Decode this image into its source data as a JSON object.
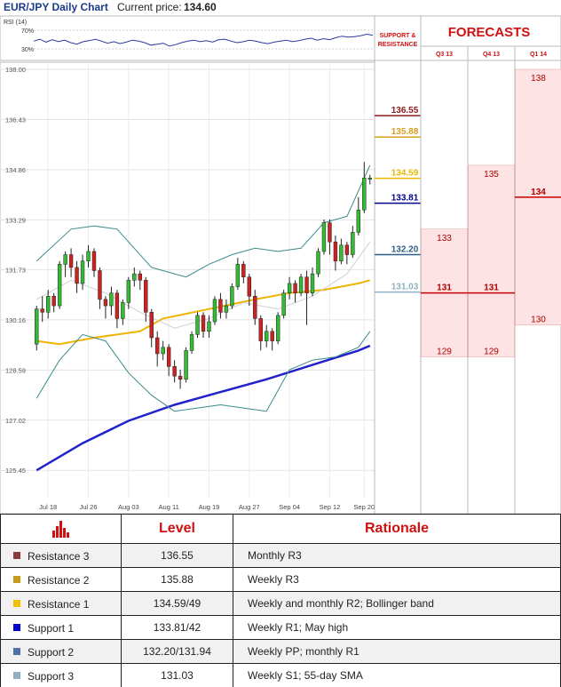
{
  "header": {
    "title": "EUR/JPY Daily Chart",
    "price_label": "Current price:",
    "price_value": "134.60"
  },
  "rsi": {
    "label": "RSI (14)",
    "ticks": [
      "70%",
      "30%"
    ]
  },
  "sr_panel": {
    "heading_line1": "SUPPORT &",
    "heading_line2": "RESISTANCE"
  },
  "forecasts": {
    "heading": "FORECASTS",
    "quarters": [
      {
        "label": "Q3 13",
        "high": "133",
        "mid": "131",
        "low": "129",
        "values": [
          133,
          131,
          129
        ]
      },
      {
        "label": "Q4 13",
        "high": "135",
        "mid": "131",
        "low": "129",
        "values": [
          135,
          131,
          129
        ]
      },
      {
        "label": "Q1 14",
        "high": "138",
        "mid": "134",
        "low": "130",
        "values": [
          138,
          134,
          130
        ]
      }
    ]
  },
  "chart_data": {
    "type": "candlestick",
    "title": "EUR/JPY Daily Chart",
    "ylim": [
      124.9,
      138.0
    ],
    "y_ticks": [
      "138.00",
      "136.43",
      "134.86",
      "133.29",
      "131.73",
      "130.16",
      "128.59",
      "127.02",
      "125.45"
    ],
    "x_ticks": [
      "Jul 18",
      "Jul 26",
      "Aug 03",
      "Aug 11",
      "Aug 19",
      "Aug 27",
      "Sep 04",
      "Sep 12",
      "Sep 20"
    ],
    "levels": [
      {
        "label": "136.55",
        "value": 136.55,
        "color": "#8b1a1a"
      },
      {
        "label": "135.88",
        "value": 135.88,
        "color": "#d4a020"
      },
      {
        "label": "134.59",
        "value": 134.59,
        "color": "#e8b800"
      },
      {
        "label": "133.81",
        "value": 133.81,
        "color": "#00008b"
      },
      {
        "label": "132.20",
        "value": 132.2,
        "color": "#2f5d8a"
      },
      {
        "label": "131.03",
        "value": 131.03,
        "color": "#8fb0c0"
      }
    ],
    "candles": [
      [
        129.4,
        130.5,
        129.2,
        130.6
      ],
      [
        130.5,
        130.4,
        130.1,
        130.9
      ],
      [
        130.4,
        130.9,
        130.2,
        131.1
      ],
      [
        130.9,
        130.6,
        130.4,
        131.0
      ],
      [
        130.6,
        131.9,
        130.5,
        132.0
      ],
      [
        131.9,
        132.2,
        131.5,
        132.3
      ],
      [
        132.2,
        131.8,
        131.5,
        132.4
      ],
      [
        131.8,
        131.3,
        131.0,
        132.0
      ],
      [
        131.3,
        132.0,
        131.1,
        132.2
      ],
      [
        132.0,
        132.3,
        131.8,
        132.5
      ],
      [
        132.3,
        131.7,
        131.5,
        132.4
      ],
      [
        131.7,
        130.8,
        130.5,
        131.8
      ],
      [
        130.8,
        130.6,
        130.2,
        130.9
      ],
      [
        130.6,
        131.0,
        130.3,
        131.2
      ],
      [
        131.0,
        130.2,
        129.9,
        131.1
      ],
      [
        130.2,
        130.7,
        130.0,
        130.8
      ],
      [
        130.7,
        131.4,
        130.5,
        131.5
      ],
      [
        131.4,
        131.6,
        131.2,
        131.8
      ],
      [
        131.6,
        131.4,
        131.1,
        131.7
      ],
      [
        131.4,
        130.4,
        130.1,
        131.5
      ],
      [
        130.4,
        129.6,
        129.3,
        130.5
      ],
      [
        129.6,
        129.1,
        128.7,
        129.8
      ],
      [
        129.1,
        129.3,
        128.9,
        129.5
      ],
      [
        129.3,
        128.7,
        128.4,
        129.4
      ],
      [
        128.7,
        128.4,
        128.2,
        128.9
      ],
      [
        128.4,
        128.3,
        128.0,
        128.6
      ],
      [
        128.3,
        129.2,
        128.2,
        129.3
      ],
      [
        129.2,
        129.7,
        129.1,
        129.8
      ],
      [
        129.7,
        130.3,
        129.6,
        130.4
      ],
      [
        130.3,
        129.8,
        129.6,
        130.4
      ],
      [
        129.8,
        130.1,
        129.6,
        130.3
      ],
      [
        130.1,
        130.8,
        130.0,
        130.9
      ],
      [
        130.8,
        130.4,
        130.2,
        131.0
      ],
      [
        130.4,
        130.6,
        130.2,
        130.8
      ],
      [
        130.6,
        131.2,
        130.5,
        131.3
      ],
      [
        131.2,
        131.9,
        131.1,
        132.1
      ],
      [
        131.9,
        131.5,
        131.3,
        132.0
      ],
      [
        131.5,
        130.9,
        130.6,
        131.6
      ],
      [
        130.9,
        130.2,
        130.0,
        131.1
      ],
      [
        130.2,
        129.5,
        129.2,
        130.3
      ],
      [
        129.5,
        129.8,
        129.3,
        130.0
      ],
      [
        129.8,
        129.5,
        129.2,
        129.9
      ],
      [
        129.5,
        130.3,
        129.4,
        130.4
      ],
      [
        130.3,
        131.0,
        130.2,
        131.1
      ],
      [
        131.0,
        131.3,
        130.8,
        131.5
      ],
      [
        131.3,
        131.0,
        130.7,
        131.4
      ],
      [
        131.0,
        131.5,
        130.9,
        131.6
      ],
      [
        131.5,
        131.0,
        130.0,
        131.7
      ],
      [
        131.0,
        131.6,
        130.9,
        131.8
      ],
      [
        131.6,
        132.3,
        131.5,
        132.4
      ],
      [
        132.3,
        133.2,
        132.2,
        133.3
      ],
      [
        133.2,
        132.6,
        132.2,
        133.3
      ],
      [
        132.6,
        132.0,
        131.7,
        132.8
      ],
      [
        132.0,
        132.5,
        131.9,
        132.7
      ],
      [
        132.5,
        132.2,
        131.9,
        132.6
      ],
      [
        132.2,
        132.9,
        132.1,
        133.1
      ],
      [
        132.9,
        133.6,
        132.8,
        134.0
      ],
      [
        133.6,
        134.6,
        133.5,
        135.1
      ],
      [
        134.6,
        134.6,
        134.4,
        134.7
      ]
    ],
    "series": [
      {
        "name": "",
        "color": "#2222cc",
        "values": [
          [
            0,
            125.45
          ],
          [
            8,
            126.3
          ],
          [
            16,
            127.0
          ],
          [
            24,
            127.5
          ],
          [
            32,
            127.9
          ],
          [
            40,
            128.3
          ],
          [
            48,
            128.75
          ],
          [
            56,
            129.2
          ],
          [
            58,
            129.35
          ]
        ]
      },
      {
        "name": "",
        "color": "#f0b400",
        "values": [
          [
            0,
            129.5
          ],
          [
            4,
            129.4
          ],
          [
            10,
            129.6
          ],
          [
            18,
            129.8
          ],
          [
            22,
            130.2
          ],
          [
            30,
            130.5
          ],
          [
            38,
            130.8
          ],
          [
            44,
            131.0
          ],
          [
            50,
            131.1
          ],
          [
            56,
            131.3
          ],
          [
            58,
            131.4
          ]
        ]
      },
      {
        "name": "",
        "color": "#3a8a8a",
        "values": [
          [
            0,
            132.0
          ],
          [
            6,
            133.0
          ],
          [
            10,
            133.1
          ],
          [
            14,
            133.0
          ],
          [
            20,
            131.8
          ],
          [
            26,
            131.5
          ],
          [
            30,
            131.9
          ],
          [
            34,
            132.2
          ],
          [
            38,
            132.4
          ],
          [
            42,
            132.3
          ],
          [
            46,
            132.4
          ],
          [
            50,
            133.2
          ],
          [
            54,
            133.4
          ],
          [
            58,
            135.0
          ]
        ]
      },
      {
        "name": "",
        "color": "#3a8a8a",
        "values": [
          [
            0,
            127.7
          ],
          [
            4,
            128.9
          ],
          [
            8,
            129.7
          ],
          [
            12,
            129.5
          ],
          [
            16,
            128.5
          ],
          [
            20,
            127.8
          ],
          [
            24,
            127.3
          ],
          [
            28,
            127.4
          ],
          [
            32,
            127.5
          ],
          [
            36,
            127.4
          ],
          [
            40,
            127.3
          ],
          [
            44,
            128.6
          ],
          [
            48,
            128.9
          ],
          [
            52,
            129.0
          ],
          [
            56,
            129.3
          ],
          [
            58,
            129.8
          ]
        ]
      },
      {
        "name": "",
        "color": "#d0d0d0",
        "values": [
          [
            0,
            130.8
          ],
          [
            6,
            131.4
          ],
          [
            12,
            131.0
          ],
          [
            18,
            130.4
          ],
          [
            24,
            129.9
          ],
          [
            30,
            130.2
          ],
          [
            36,
            130.7
          ],
          [
            42,
            130.5
          ],
          [
            48,
            130.9
          ],
          [
            54,
            131.6
          ],
          [
            58,
            132.6
          ]
        ]
      }
    ],
    "rsi_values": [
      58,
      62,
      56,
      61,
      57,
      60,
      55,
      52,
      57,
      59,
      62,
      58,
      54,
      57,
      53,
      56,
      60,
      58,
      55,
      50,
      52,
      54,
      48,
      51,
      55,
      58,
      60,
      57,
      59,
      56,
      61,
      62,
      58,
      55,
      57,
      60,
      58,
      55,
      53,
      56,
      58,
      60,
      57,
      59,
      62,
      64,
      60,
      63,
      61,
      65,
      68,
      66,
      67,
      69,
      72,
      70
    ],
    "gridlines": true
  },
  "table": {
    "col_level": "Level",
    "col_rationale": "Rationale",
    "rows": [
      {
        "name": "Resistance 3",
        "level": "136.55",
        "rationale": "Monthly R3",
        "color": "#8b3a3a"
      },
      {
        "name": "Resistance 2",
        "level": "135.88",
        "rationale": "Weekly R3",
        "color": "#c99a1a"
      },
      {
        "name": "Resistance 1",
        "level": "134.59/49",
        "rationale": "Weekly and monthly R2; Bollinger band",
        "color": "#f0c000"
      },
      {
        "name": "Support 1",
        "level": "133.81/42",
        "rationale": "Weekly R1; May high",
        "color": "#0000cc"
      },
      {
        "name": "Support 2",
        "level": "132.20/131.94",
        "rationale": "Weekly PP; monthly R1",
        "color": "#5070a8"
      },
      {
        "name": "Support 3",
        "level": "131.03",
        "rationale": "Weekly S1; 55-day SMA",
        "color": "#8fb0c0"
      }
    ]
  }
}
